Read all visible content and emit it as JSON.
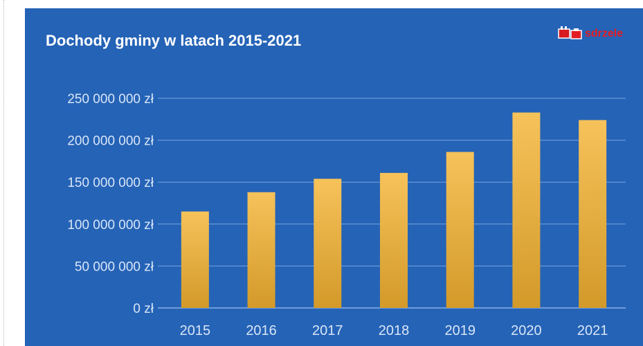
{
  "chart_data": {
    "type": "bar",
    "title": "Dochody gminy w latach 2015-2021",
    "categories": [
      "2015",
      "2016",
      "2017",
      "2018",
      "2019",
      "2020",
      "2021"
    ],
    "values": [
      115000000,
      138000000,
      154000000,
      161000000,
      186000000,
      233000000,
      224000000
    ],
    "ylim": [
      0,
      250000000
    ],
    "y_ticks": [
      0,
      50000000,
      100000000,
      150000000,
      200000000,
      250000000
    ],
    "y_tick_labels": [
      "0 zł",
      "50 000 000 zł",
      "100 000 000 zł",
      "150 000 000 zł",
      "200 000 000 zł",
      "250 000 000 zł"
    ],
    "xlabel": "",
    "ylabel": "",
    "grid": true,
    "legend": "none",
    "colors": {
      "background": "#2563b6",
      "bar_top": "#f6c25a",
      "bar_bottom": "#d39a2a",
      "gridline": "#8bb3e8",
      "text": "#d9e6f8"
    }
  },
  "logo": {
    "text": "sdrzele",
    "icon": "municipal-crest-icon"
  }
}
